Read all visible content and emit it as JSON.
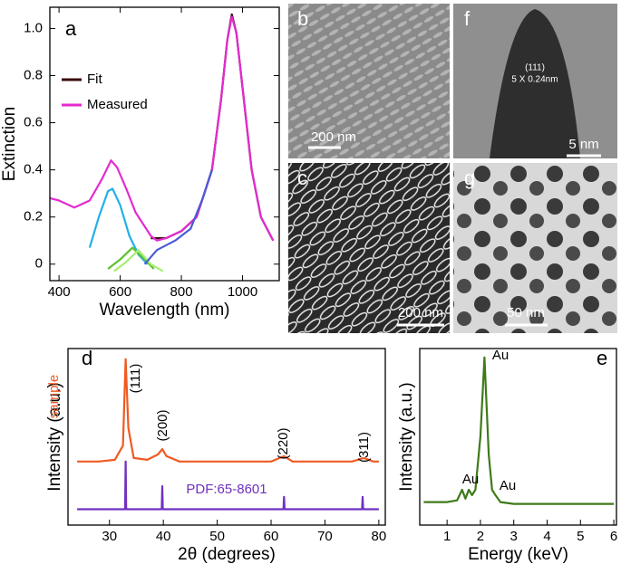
{
  "chart_data": [
    {
      "type": "line",
      "label": "a",
      "x_label": "Wavelength (nm)",
      "y_label": "Extinction",
      "xlim": [
        370,
        1120
      ],
      "ylim": [
        -0.07,
        1.09
      ],
      "xticks": [
        400,
        600,
        800,
        1000
      ],
      "yticks": [
        0,
        0.2,
        0.4,
        0.6,
        0.8,
        {
          "value": 1,
          "label": "1.0"
        }
      ],
      "series": [
        {
          "name": "Fit",
          "color": "#3b0a0a",
          "x": [
            700,
            750,
            800,
            850,
            900,
            930,
            950,
            965,
            980,
            1000,
            1030,
            1060,
            1100
          ],
          "values": [
            0.11,
            0.11,
            0.14,
            0.2,
            0.4,
            0.7,
            0.95,
            1.06,
            0.98,
            0.75,
            0.4,
            0.2,
            0.1
          ]
        },
        {
          "name": "Measured",
          "color": "#e42ad0",
          "x": [
            370,
            400,
            450,
            500,
            540,
            570,
            590,
            620,
            650,
            700,
            720,
            750,
            800,
            850,
            900,
            930,
            950,
            965,
            980,
            1000,
            1030,
            1060,
            1100
          ],
          "values": [
            0.28,
            0.27,
            0.24,
            0.27,
            0.36,
            0.44,
            0.41,
            0.32,
            0.22,
            0.12,
            0.1,
            0.11,
            0.14,
            0.2,
            0.4,
            0.7,
            0.95,
            1.05,
            0.98,
            0.75,
            0.4,
            0.2,
            0.1
          ]
        },
        {
          "color": "#22b0e8",
          "x": [
            500,
            530,
            560,
            575,
            600,
            630,
            660,
            690
          ],
          "values": [
            0.07,
            0.2,
            0.31,
            0.32,
            0.25,
            0.12,
            0.04,
            0.0
          ]
        },
        {
          "color": "#5cc22a",
          "x": [
            560,
            600,
            640,
            680,
            710
          ],
          "values": [
            -0.02,
            0.02,
            0.07,
            0.02,
            -0.02
          ]
        },
        {
          "color": "#a6ef72",
          "x": [
            580,
            620,
            660,
            700,
            740
          ],
          "values": [
            -0.03,
            0.01,
            0.06,
            0.0,
            -0.03
          ]
        },
        {
          "color": "#4a5ad8",
          "x": [
            680,
            720,
            780,
            830,
            870,
            900
          ],
          "values": [
            0.0,
            0.06,
            0.1,
            0.15,
            0.28,
            0.4
          ]
        }
      ]
    },
    {
      "type": "line",
      "label": "d",
      "x_label": "2θ (degrees)",
      "y_label": "Intensity (a.u.)",
      "xlim": [
        22.3,
        81.2
      ],
      "ylim": [
        0,
        1
      ],
      "xticks": [
        30,
        40,
        50,
        60,
        70,
        80
      ],
      "peak_labels": [
        "(111)",
        "(200)",
        "(220)",
        "(311)"
      ],
      "series": [
        {
          "name": "sample",
          "color": "#f05a22",
          "x": [
            24,
            28,
            31,
            32.5,
            33,
            33.5,
            34.5,
            37,
            39,
            39.8,
            40.6,
            43,
            50,
            55,
            60,
            62.4,
            64,
            70,
            75,
            77.2,
            79,
            80
          ],
          "values": [
            0.36,
            0.36,
            0.37,
            0.45,
            0.94,
            0.55,
            0.38,
            0.37,
            0.4,
            0.43,
            0.39,
            0.36,
            0.36,
            0.36,
            0.36,
            0.39,
            0.36,
            0.36,
            0.36,
            0.38,
            0.36,
            0.36
          ]
        },
        {
          "name": "PDF:65-8601",
          "color": "#7030c0",
          "x": [
            24,
            32.9,
            33,
            33.1,
            39.7,
            39.8,
            39.9,
            62.3,
            62.4,
            62.5,
            76.9,
            77,
            77.1,
            80
          ],
          "values": [
            0.09,
            0.09,
            0.36,
            0.09,
            0.09,
            0.22,
            0.09,
            0.09,
            0.16,
            0.09,
            0.09,
            0.16,
            0.09,
            0.09
          ]
        }
      ]
    },
    {
      "type": "line",
      "label": "e",
      "x_label": "Energy (keV)",
      "y_label": "Intensity (a.u.)",
      "xlim": [
        0.18,
        6.08
      ],
      "ylim": [
        0,
        1
      ],
      "xticks": [
        1,
        2,
        3,
        4,
        5,
        6
      ],
      "peak_labels": [
        "Au",
        "Au",
        "Au"
      ],
      "series": [
        {
          "color": "#3e7a1a",
          "x": [
            0.3,
            1.0,
            1.3,
            1.45,
            1.55,
            1.65,
            1.75,
            1.85,
            2.0,
            2.12,
            2.25,
            2.35,
            2.45,
            2.6,
            3,
            4,
            5,
            6
          ],
          "values": [
            0.13,
            0.13,
            0.14,
            0.2,
            0.15,
            0.2,
            0.17,
            0.2,
            0.5,
            0.95,
            0.4,
            0.2,
            0.17,
            0.13,
            0.12,
            0.12,
            0.12,
            0.12
          ]
        }
      ]
    }
  ],
  "images": [
    {
      "label": "b",
      "scale_bar": "200 nm"
    },
    {
      "label": "f",
      "lattice_plane": "(111)",
      "lattice_spacing": "5 X 0.24nm",
      "scale_bar": "5 nm"
    },
    {
      "label": "c",
      "scale_bar": "200 nm"
    },
    {
      "label": "g",
      "scale_bar": "50 nm"
    }
  ]
}
